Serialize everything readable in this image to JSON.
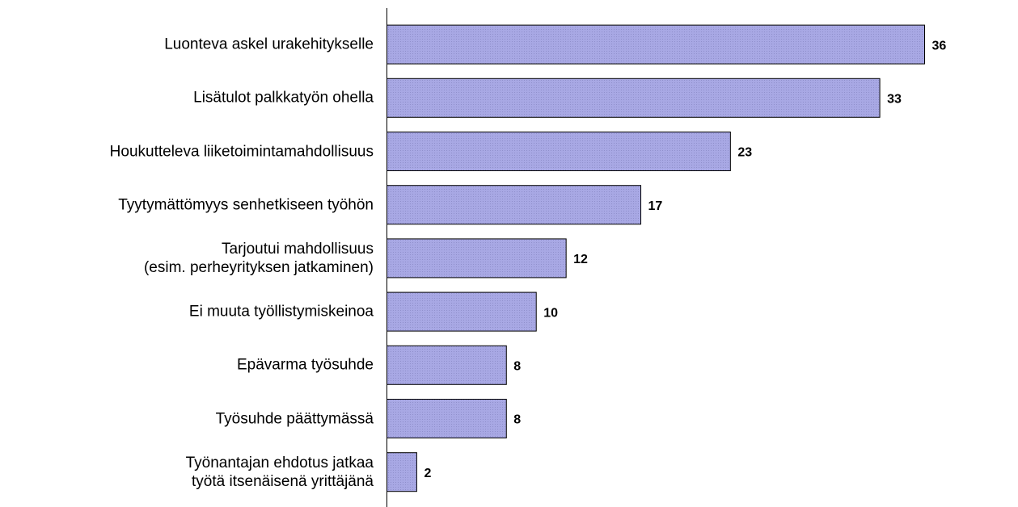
{
  "chart_data": {
    "type": "barh",
    "categories": [
      "Luonteva askel urakehitykselle",
      "Lisätulot palkkatyön ohella",
      "Houkutteleva liiketoimintamahdollisuus",
      "Tyytymättömyys senhetkiseen työhön",
      "Tarjoutui mahdollisuus\n(esim. perheyrityksen jatkaminen)",
      "Ei muuta työllistymiskeinoa",
      "Epävarma työsuhde",
      "Työsuhde päättymässä",
      "Työnantajan ehdotus jatkaa\ntyötä itsenäisenä yrittäjänä"
    ],
    "values": [
      36,
      33,
      23,
      17,
      12,
      10,
      8,
      8,
      2
    ],
    "color": "#a8a8e4"
  }
}
